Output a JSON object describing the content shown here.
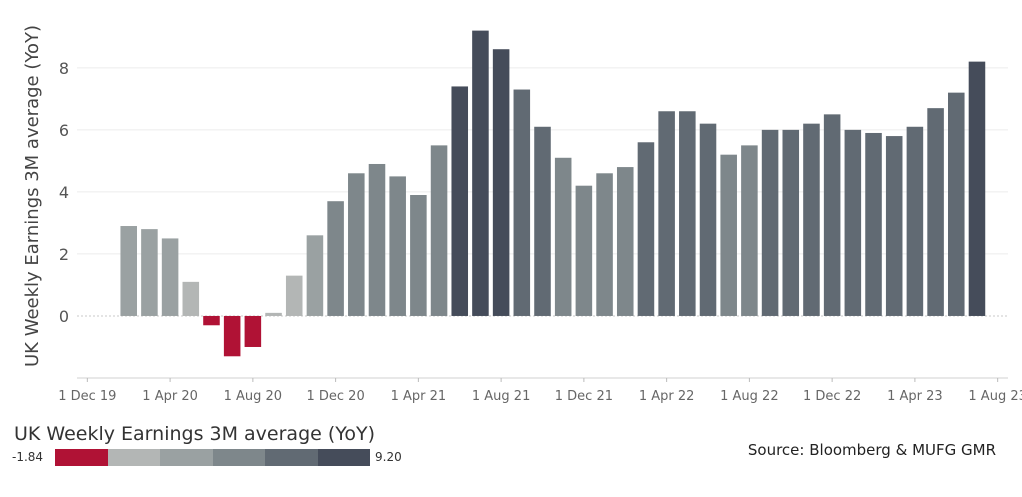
{
  "chart_data": {
    "type": "bar",
    "ylabel": "UK Weekly Earnings 3M average (YoY)",
    "yticks": [
      0,
      2,
      4,
      6,
      8
    ],
    "ylim": [
      -2.0,
      9.8
    ],
    "grid": true,
    "x": [
      "Dec 19",
      "Jan 20",
      "Feb 20",
      "Mar 20",
      "Apr 20",
      "May 20",
      "Jun 20",
      "Jul 20",
      "Aug 20",
      "Sep 20",
      "Oct 20",
      "Nov 20",
      "Dec 20",
      "Jan 21",
      "Feb 21",
      "Mar 21",
      "Apr 21",
      "May 21",
      "Jun 21",
      "Jul 21",
      "Aug 21",
      "Sep 21",
      "Oct 21",
      "Nov 21",
      "Dec 21",
      "Jan 22",
      "Feb 22",
      "Mar 22",
      "Apr 22",
      "May 22",
      "Jun 22",
      "Jul 22",
      "Aug 22",
      "Sep 22",
      "Oct 22",
      "Nov 22",
      "Dec 22",
      "Jan 23",
      "Feb 23",
      "Mar 23",
      "Apr 23",
      "May 23",
      "Jun 23",
      "Jul 23",
      "Aug 23"
    ],
    "values": [
      null,
      null,
      2.9,
      2.8,
      2.5,
      1.1,
      -0.3,
      -1.3,
      -1.0,
      0.1,
      1.3,
      2.6,
      3.7,
      4.6,
      4.9,
      4.5,
      3.9,
      5.5,
      7.4,
      9.2,
      8.6,
      7.3,
      6.1,
      5.1,
      4.2,
      4.6,
      4.8,
      5.6,
      6.6,
      6.6,
      6.2,
      5.2,
      5.5,
      6.0,
      6.0,
      6.2,
      6.5,
      6.0,
      5.9,
      5.8,
      6.1,
      6.7,
      7.2,
      8.2,
      null
    ],
    "xticks": [
      {
        "index": 0,
        "label": "1 Dec 19"
      },
      {
        "index": 4,
        "label": "1 Apr 20"
      },
      {
        "index": 8,
        "label": "1 Aug 20"
      },
      {
        "index": 12,
        "label": "1 Dec 20"
      },
      {
        "index": 16,
        "label": "1 Apr 21"
      },
      {
        "index": 20,
        "label": "1 Aug 21"
      },
      {
        "index": 24,
        "label": "1 Dec 21"
      },
      {
        "index": 28,
        "label": "1 Apr 22"
      },
      {
        "index": 32,
        "label": "1 Aug 22"
      },
      {
        "index": 36,
        "label": "1 Dec 22"
      },
      {
        "index": 40,
        "label": "1 Apr 23"
      },
      {
        "index": 44,
        "label": "1 Aug 23"
      }
    ],
    "color_scale": {
      "title": "UK Weekly Earnings 3M average (YoY)",
      "min": -1.84,
      "max": 9.2,
      "min_label": "-1.84",
      "max_label": "9.20",
      "colors": [
        "#b01235",
        "#b3b6b5",
        "#9aa1a2",
        "#7e878b",
        "#616a73",
        "#454c5a"
      ]
    }
  },
  "source": "Source: Bloomberg & MUFG GMR"
}
